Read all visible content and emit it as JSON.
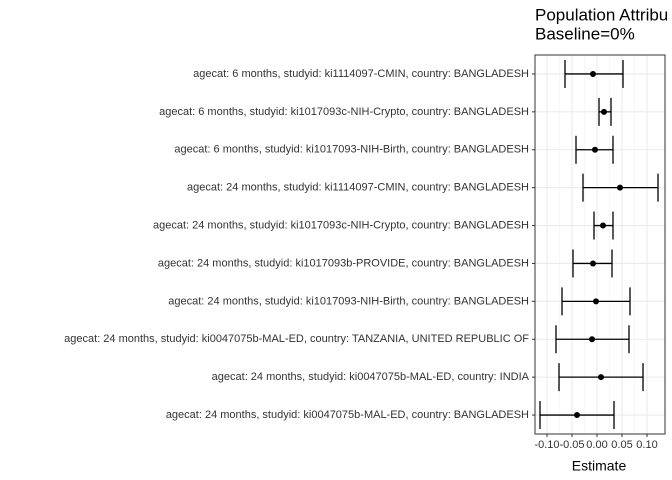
{
  "chart_data": {
    "type": "forest",
    "title": "Population Attribu",
    "subtitle": "Baseline=0%",
    "x_label": "Estimate",
    "categories": [
      "agecat: 6 months, studyid: ki1114097-CMIN, country: BANGLADESH",
      "agecat: 6 months, studyid: ki1017093c-NIH-Crypto, country: BANGLADESH",
      "agecat: 6 months, studyid: ki1017093-NIH-Birth, country: BANGLADESH",
      "agecat: 24 months, studyid: ki1114097-CMIN, country: BANGLADESH",
      "agecat: 24 months, studyid: ki1017093c-NIH-Crypto, country: BANGLADESH",
      "agecat: 24 months, studyid: ki1017093b-PROVIDE, country: BANGLADESH",
      "agecat: 24 months, studyid: ki1017093-NIH-Birth, country: BANGLADESH",
      "agecat: 24 months, studyid: ki0047075b-MAL-ED, country: TANZANIA, UNITED REPUBLIC OF",
      "agecat: 24 months, studyid: ki0047075b-MAL-ED, country: INDIA",
      "agecat: 24 months, studyid: ki0047075b-MAL-ED, country: BANGLADESH"
    ],
    "values": [
      -0.008,
      0.014,
      -0.004,
      0.046,
      0.012,
      -0.008,
      -0.002,
      -0.01,
      0.008,
      -0.04
    ],
    "lower": [
      -0.064,
      0.004,
      -0.042,
      -0.028,
      -0.006,
      -0.048,
      -0.07,
      -0.082,
      -0.076,
      -0.114
    ],
    "upper": [
      0.052,
      0.028,
      0.032,
      0.122,
      0.032,
      0.03,
      0.066,
      0.064,
      0.092,
      0.034
    ],
    "color": "#000000",
    "xlim": [
      -0.124,
      0.136
    ],
    "xticks": [
      {
        "value": -0.1,
        "label": "-0.10"
      },
      {
        "value": -0.05,
        "label": "-0.05"
      },
      {
        "value": 0,
        "label": "0.00"
      },
      {
        "value": 0.05,
        "label": "0.05"
      },
      {
        "value": 0.1,
        "label": "0.10"
      }
    ],
    "grid": true
  }
}
